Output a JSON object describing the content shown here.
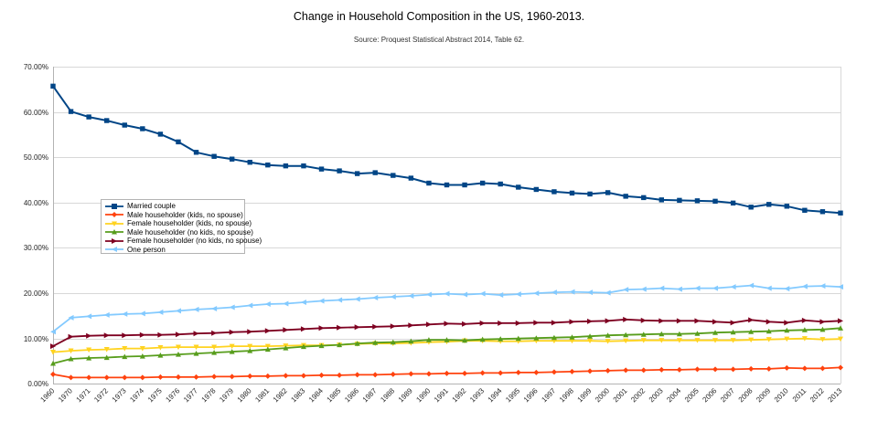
{
  "chart_data": {
    "type": "line",
    "title": "Change in Household Composition in the US, 1960-2013.",
    "subtitle": "Source: Proquest Statistical Abstract 2014, Table 62.",
    "legend_position": "inside-middle-left",
    "grid": "horizontal",
    "x_label_rotation": -45,
    "y_axis": {
      "min": 0,
      "max": 70,
      "step": 10,
      "tick_labels": [
        "0.00%",
        "10.00%",
        "20.00%",
        "30.00%",
        "40.00%",
        "50.00%",
        "60.00%",
        "70.00%"
      ]
    },
    "x_categories": [
      "1960",
      "1970",
      "1971",
      "1972",
      "1973",
      "1974",
      "1975",
      "1976",
      "1977",
      "1978",
      "1979",
      "1980",
      "1981",
      "1982",
      "1983",
      "1984",
      "1985",
      "1986",
      "1987",
      "1988",
      "1989",
      "1990",
      "1991",
      "1992",
      "1993",
      "1994",
      "1995",
      "1996",
      "1997",
      "1998",
      "1999",
      "2000",
      "2001",
      "2002",
      "2003",
      "2004",
      "2005",
      "2006",
      "2007",
      "2008",
      "2009",
      "2010",
      "2011",
      "2012",
      "2013"
    ],
    "series": [
      {
        "name": "Married couple",
        "color": "#004586",
        "marker": "square",
        "values": [
          65.7,
          60.1,
          58.9,
          58.1,
          57.1,
          56.3,
          55.1,
          53.4,
          51.1,
          50.2,
          49.6,
          48.9,
          48.3,
          48.1,
          48.1,
          47.4,
          47.0,
          46.4,
          46.6,
          46.0,
          45.4,
          44.3,
          43.9,
          43.9,
          44.3,
          44.1,
          43.4,
          42.9,
          42.4,
          42.1,
          41.9,
          42.2,
          41.4,
          41.1,
          40.6,
          40.5,
          40.4,
          40.3,
          39.9,
          39.0,
          39.6,
          39.2,
          38.3,
          38.0,
          37.7
        ]
      },
      {
        "name": "Male householder (kids, no spouse)",
        "color": "#FF420E",
        "marker": "diamond",
        "values": [
          2.1,
          1.4,
          1.4,
          1.4,
          1.4,
          1.4,
          1.5,
          1.5,
          1.5,
          1.6,
          1.6,
          1.7,
          1.7,
          1.8,
          1.8,
          1.9,
          1.9,
          2.0,
          2.0,
          2.1,
          2.2,
          2.2,
          2.3,
          2.3,
          2.4,
          2.4,
          2.5,
          2.5,
          2.6,
          2.7,
          2.8,
          2.9,
          3.0,
          3.0,
          3.1,
          3.1,
          3.2,
          3.2,
          3.2,
          3.3,
          3.3,
          3.5,
          3.4,
          3.4,
          3.6
        ]
      },
      {
        "name": "Female householder (kids, no spouse)",
        "color": "#FFD320",
        "marker": "triangle-down",
        "values": [
          7.0,
          7.3,
          7.5,
          7.6,
          7.8,
          7.8,
          8.0,
          8.1,
          8.1,
          8.1,
          8.3,
          8.3,
          8.3,
          8.4,
          8.5,
          8.5,
          8.6,
          8.8,
          8.9,
          8.9,
          9.0,
          9.2,
          9.3,
          9.5,
          9.5,
          9.4,
          9.4,
          9.5,
          9.5,
          9.5,
          9.5,
          9.4,
          9.5,
          9.6,
          9.6,
          9.6,
          9.6,
          9.6,
          9.6,
          9.7,
          9.8,
          9.9,
          10.0,
          9.8,
          9.9
        ]
      },
      {
        "name": "Male householder (no kids, no spouse)",
        "color": "#579D1C",
        "marker": "triangle-up",
        "values": [
          4.5,
          5.5,
          5.7,
          5.8,
          6.0,
          6.1,
          6.3,
          6.5,
          6.7,
          6.9,
          7.1,
          7.3,
          7.6,
          7.9,
          8.2,
          8.4,
          8.6,
          8.9,
          9.1,
          9.2,
          9.4,
          9.7,
          9.7,
          9.6,
          9.8,
          9.9,
          10.0,
          10.1,
          10.2,
          10.3,
          10.5,
          10.7,
          10.8,
          10.9,
          11.0,
          11.0,
          11.1,
          11.3,
          11.4,
          11.5,
          11.6,
          11.8,
          11.9,
          12.0,
          12.3
        ]
      },
      {
        "name": "Female householder (no kids, no spouse)",
        "color": "#7E0021",
        "marker": "triangle-right",
        "values": [
          8.3,
          10.4,
          10.6,
          10.7,
          10.7,
          10.8,
          10.8,
          10.9,
          11.1,
          11.2,
          11.4,
          11.5,
          11.7,
          11.9,
          12.1,
          12.3,
          12.4,
          12.5,
          12.6,
          12.7,
          12.9,
          13.1,
          13.3,
          13.2,
          13.4,
          13.4,
          13.4,
          13.5,
          13.5,
          13.7,
          13.8,
          13.9,
          14.2,
          14.0,
          13.9,
          13.9,
          13.9,
          13.7,
          13.5,
          14.1,
          13.7,
          13.5,
          14.0,
          13.7,
          13.9
        ]
      },
      {
        "name": "One person",
        "color": "#83CAFF",
        "marker": "triangle-left",
        "values": [
          11.5,
          14.6,
          14.9,
          15.2,
          15.4,
          15.5,
          15.8,
          16.1,
          16.4,
          16.6,
          16.9,
          17.3,
          17.6,
          17.7,
          18.0,
          18.3,
          18.5,
          18.7,
          19.0,
          19.2,
          19.4,
          19.7,
          19.9,
          19.7,
          19.9,
          19.6,
          19.8,
          20.0,
          20.2,
          20.3,
          20.2,
          20.1,
          20.8,
          20.9,
          21.1,
          20.9,
          21.1,
          21.1,
          21.4,
          21.7,
          21.1,
          21.0,
          21.5,
          21.6,
          21.4
        ]
      }
    ]
  }
}
